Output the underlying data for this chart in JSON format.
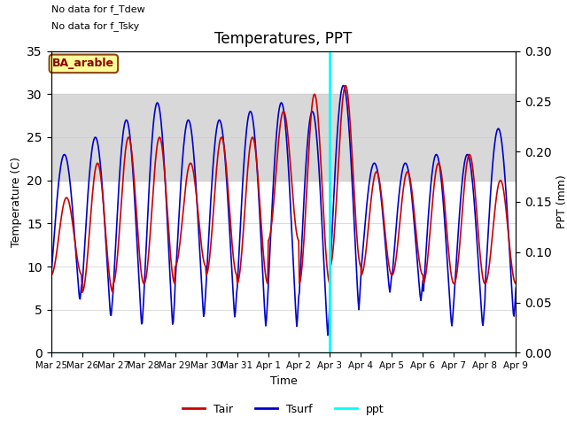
{
  "title": "Temperatures, PPT",
  "xlabel": "Time",
  "ylabel_left": "Temperature (C)",
  "ylabel_right": "PPT (mm)",
  "annotation1": "No data for f_Tdew",
  "annotation2": "No data for f_Tsky",
  "site_label": "BA_arable",
  "ylim_left": [
    0,
    35
  ],
  "ylim_right": [
    0.0,
    0.3
  ],
  "yticks_left": [
    0,
    5,
    10,
    15,
    20,
    25,
    30,
    35
  ],
  "yticks_right": [
    0.0,
    0.05,
    0.1,
    0.15,
    0.2,
    0.25,
    0.3
  ],
  "shade_ymin": 20,
  "shade_ymax": 30,
  "shade_color": "#d8d8d8",
  "line_tair_color": "#cc0000",
  "line_tsurf_color": "#0000cc",
  "line_ppt_color": "#00ffff",
  "vline_color": "#00ffff",
  "vline_day": 9.0,
  "background_color": "#ffffff",
  "title_fontsize": 12,
  "legend_entries": [
    "Tair",
    "Tsurf",
    "ppt"
  ],
  "xtick_labels": [
    "Mar 25",
    "Mar 26",
    "Mar 27",
    "Mar 28",
    "Mar 29",
    "Mar 30",
    "Mar 31",
    "Apr 1",
    "Apr 2",
    "Apr 3",
    "Apr 4",
    "Apr 5",
    "Apr 6",
    "Apr 7",
    "Apr 8",
    "Apr 9"
  ],
  "xtick_positions": [
    0,
    1,
    2,
    3,
    4,
    5,
    6,
    7,
    8,
    9,
    10,
    11,
    12,
    13,
    14,
    15
  ]
}
